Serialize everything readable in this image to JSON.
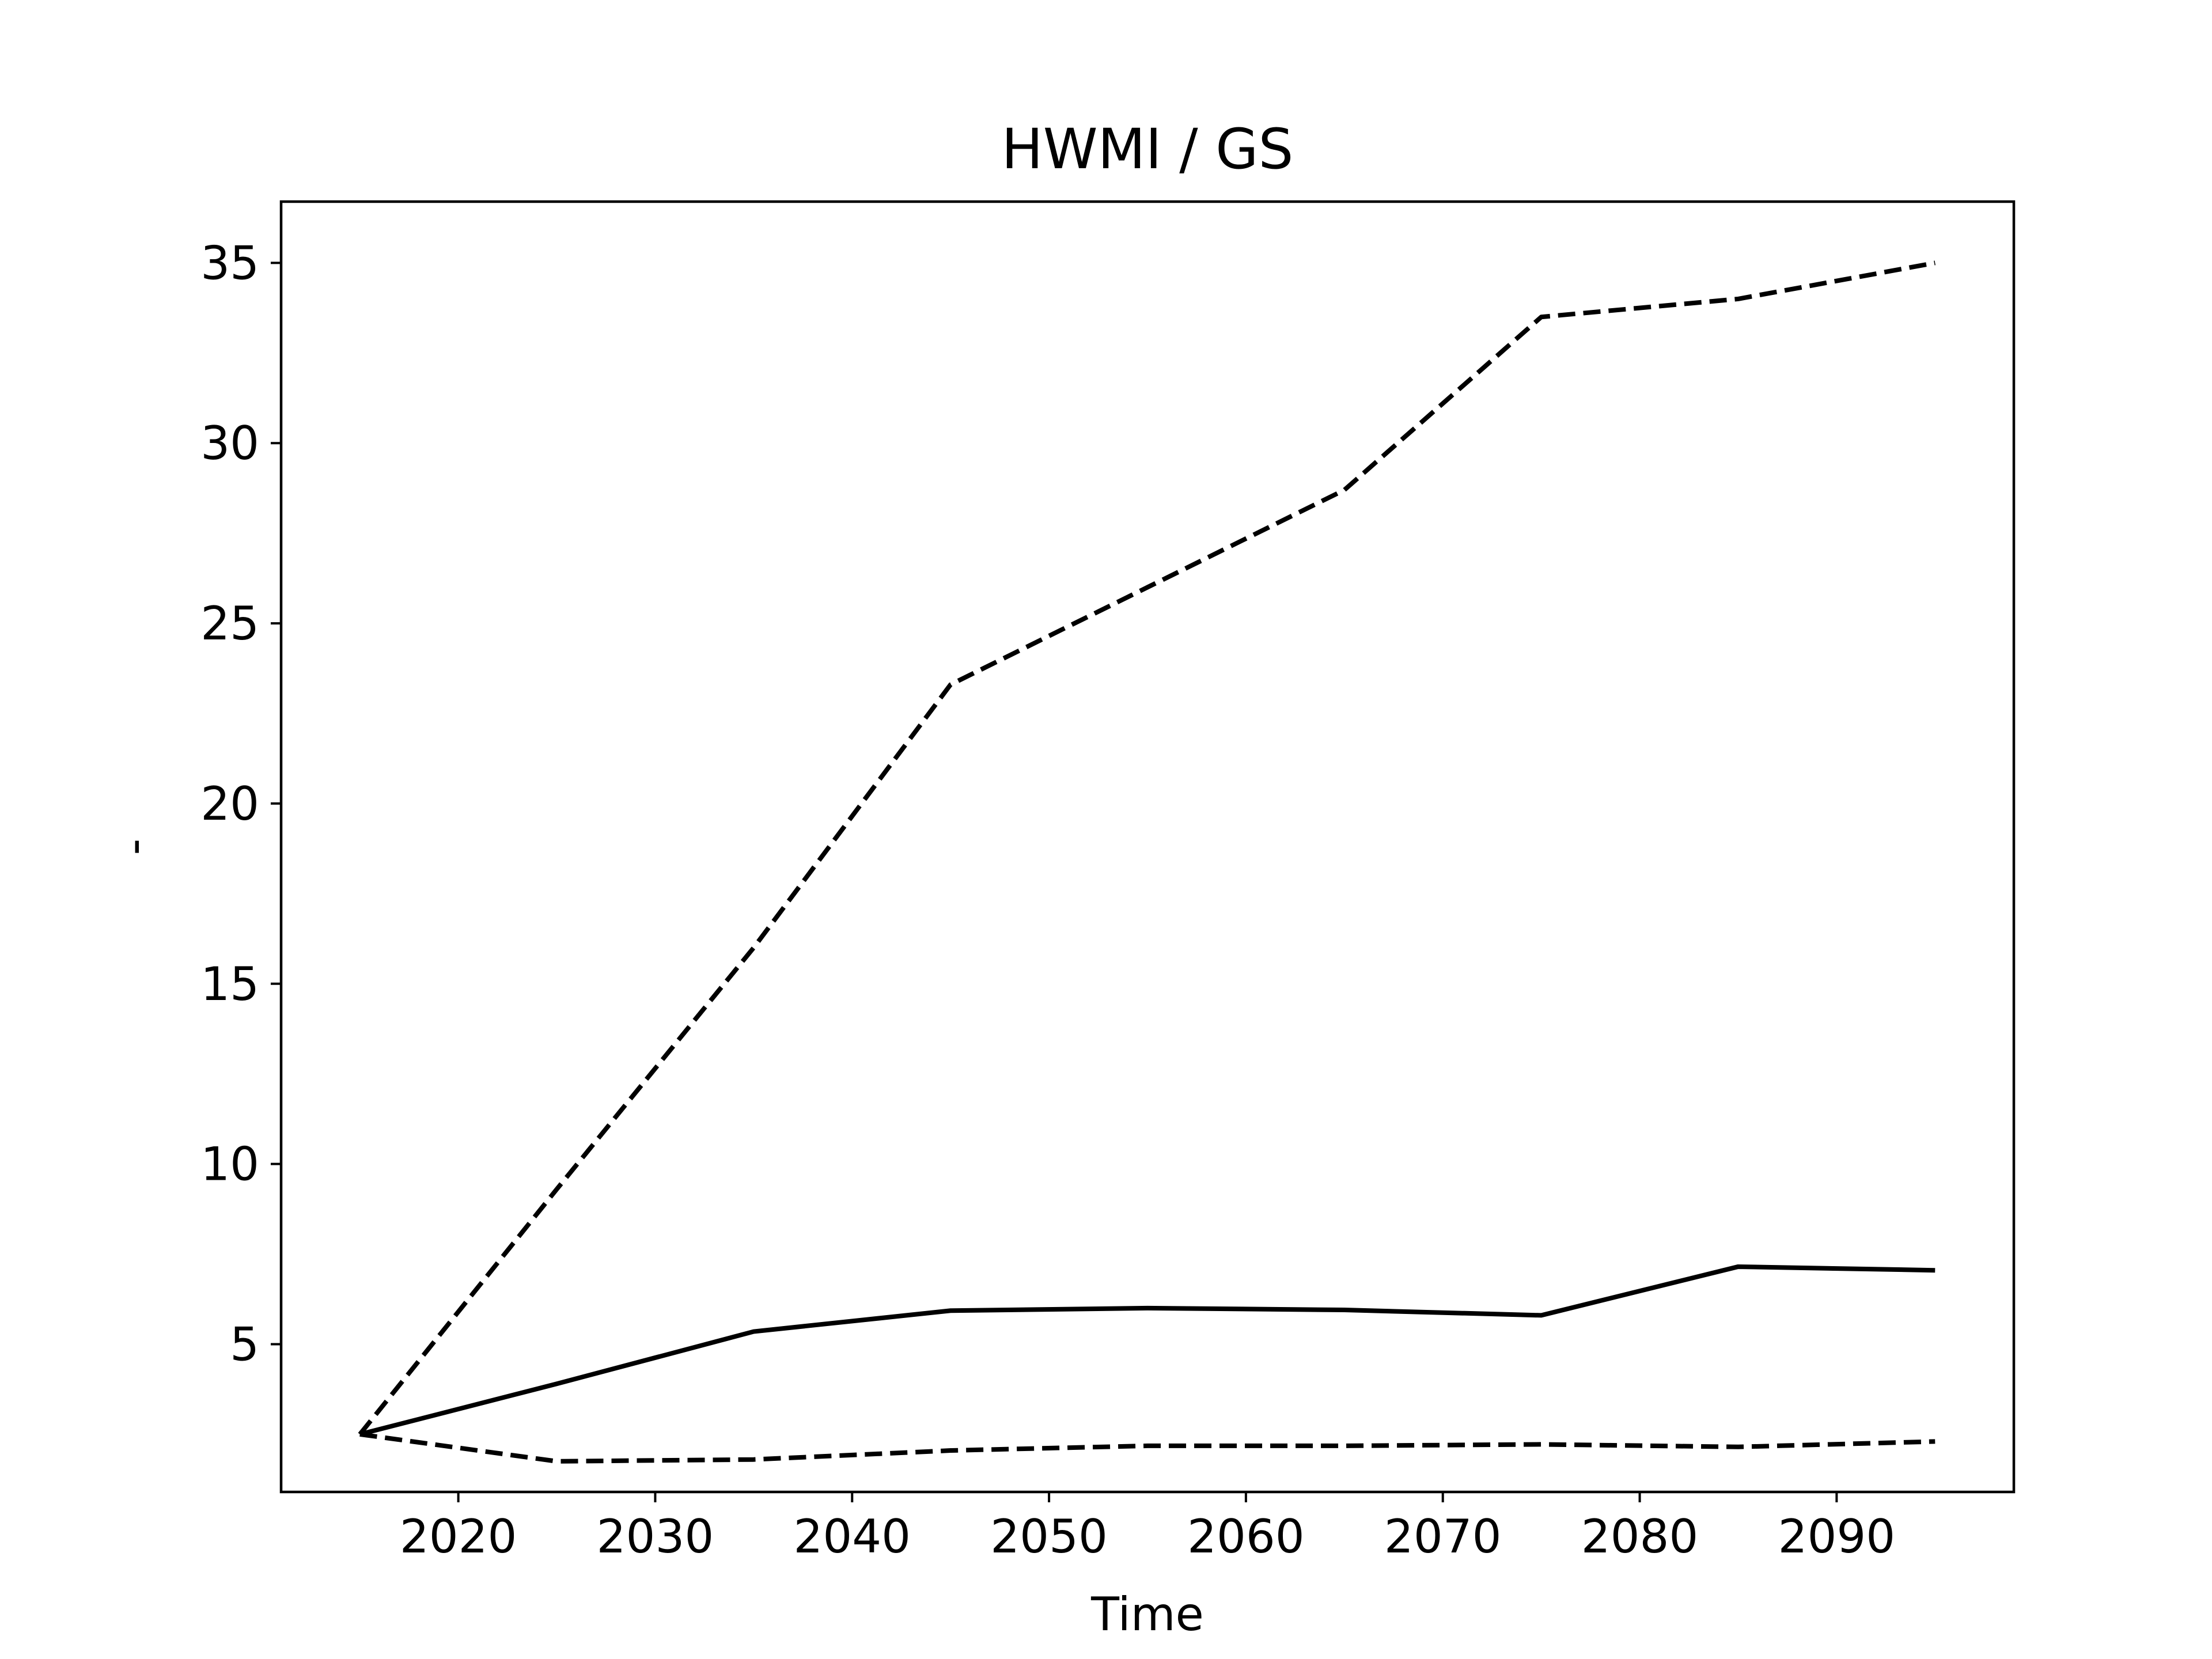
{
  "chart_data": {
    "type": "line",
    "title": "HWMI / GS",
    "xlabel": "Time",
    "ylabel": "-",
    "x": [
      2015,
      2025,
      2035,
      2045,
      2055,
      2065,
      2075,
      2085,
      2095
    ],
    "xlim": [
      2011,
      2099
    ],
    "ylim": [
      0.9,
      36.7
    ],
    "xticks": [
      2020,
      2030,
      2040,
      2050,
      2060,
      2070,
      2080,
      2090
    ],
    "yticks": [
      5,
      10,
      15,
      20,
      25,
      30,
      35
    ],
    "grid": false,
    "series": [
      {
        "style": "solid",
        "color": "#000000",
        "values": [
          2.5,
          3.9,
          5.35,
          5.93,
          6.0,
          5.95,
          5.8,
          7.15,
          7.05
        ]
      },
      {
        "style": "dashed",
        "color": "#000000",
        "values": [
          2.5,
          9.3,
          16.0,
          23.3,
          26.0,
          28.7,
          33.5,
          34.0,
          35.0
        ]
      },
      {
        "style": "dashed",
        "color": "#000000",
        "values": [
          2.5,
          1.75,
          1.8,
          2.05,
          2.18,
          2.18,
          2.22,
          2.15,
          2.3
        ]
      }
    ]
  }
}
